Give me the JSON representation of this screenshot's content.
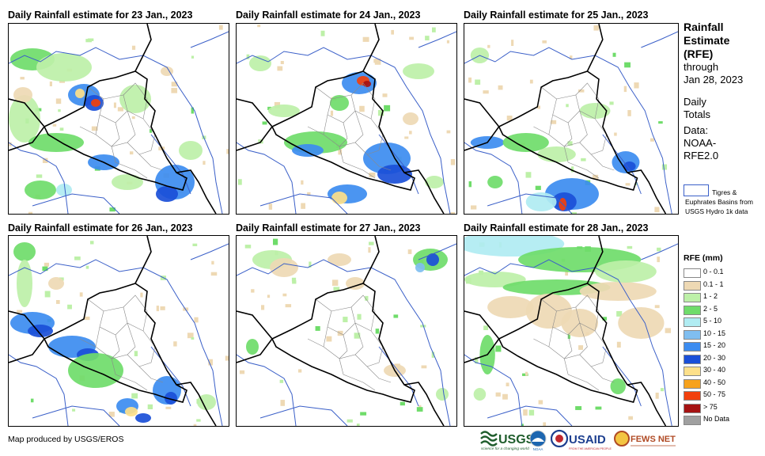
{
  "panels": [
    {
      "title": "Daily Rainfall estimate for 23 Jan., 2023"
    },
    {
      "title": "Daily Rainfall estimate for 24 Jan., 2023"
    },
    {
      "title": "Daily Rainfall estimate for 25 Jan., 2023"
    },
    {
      "title": "Daily Rainfall estimate for 26 Jan., 2023"
    },
    {
      "title": "Daily Rainfall estimate for 27 Jan., 2023"
    },
    {
      "title": "Daily Rainfall estimate for 28 Jan., 2023"
    }
  ],
  "legend": {
    "title_lines": [
      "Rainfall",
      "Estimate",
      "(RFE)"
    ],
    "through": "through",
    "date": "Jan 28, 2023",
    "daily": "Daily",
    "totals": "Totals",
    "data_label": "Data:",
    "source_1": "NOAA-",
    "source_2": "RFE2.0",
    "basins_text": "Tigres & Euphrates Basins from USGS Hydro 1k data",
    "rfe_title": "RFE (mm)",
    "classes": [
      {
        "label": "0 - 0.1",
        "color": "#ffffff"
      },
      {
        "label": "0.1 - 1",
        "color": "#eed9b4"
      },
      {
        "label": "1 - 2",
        "color": "#bdf0a8"
      },
      {
        "label": "2 - 5",
        "color": "#6fdc6a"
      },
      {
        "label": "5 - 10",
        "color": "#b0ecf2"
      },
      {
        "label": "10 - 15",
        "color": "#7fbef0"
      },
      {
        "label": "15 - 20",
        "color": "#3c8cf0"
      },
      {
        "label": "20 - 30",
        "color": "#1a4fd8"
      },
      {
        "label": "30 - 40",
        "color": "#fde08a"
      },
      {
        "label": "40 - 50",
        "color": "#f7a21c"
      },
      {
        "label": "50 - 75",
        "color": "#f2400c"
      },
      {
        "label": "> 75",
        "color": "#a51212"
      },
      {
        "label": "No Data",
        "color": "#a0a0a0"
      }
    ]
  },
  "credit": "Map produced by USGS/EROS",
  "logos": {
    "usgs": "USGS",
    "usgs_tagline": "science for a changing world",
    "noaa": "NOAA",
    "usaid": "USAID",
    "usaid_tagline": "FROM THE AMERICAN PEOPLE",
    "fewsnet": "FEWS NET"
  }
}
